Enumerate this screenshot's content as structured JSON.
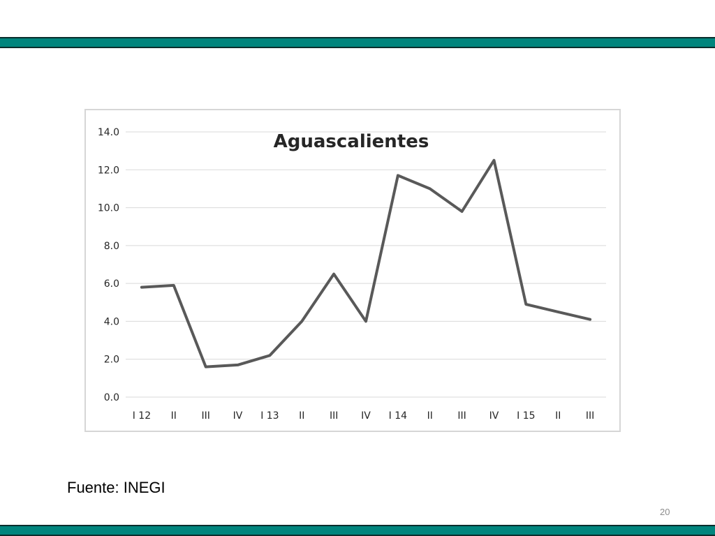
{
  "slide": {
    "source_text": "Fuente: INEGI",
    "page_number": "20",
    "accent_color": "#00857d"
  },
  "chart_data": {
    "type": "line",
    "title": "Aguascalientes",
    "categories": [
      "I 12",
      "II",
      "III",
      "IV",
      "I 13",
      "II",
      "III",
      "IV",
      "I 14",
      "II",
      "III",
      "IV",
      "I 15",
      "II",
      "III"
    ],
    "series": [
      {
        "values": [
          5.8,
          5.9,
          1.6,
          1.7,
          2.2,
          4.0,
          6.5,
          4.0,
          11.7,
          11.0,
          9.8,
          12.5,
          4.9,
          4.5,
          4.1
        ],
        "color": "#595959"
      }
    ],
    "ylim": [
      0,
      14
    ],
    "yticks": [
      0,
      2,
      4,
      6,
      8,
      10,
      12,
      14
    ],
    "ytick_format": "0.0",
    "grid": true,
    "legend": "none"
  }
}
